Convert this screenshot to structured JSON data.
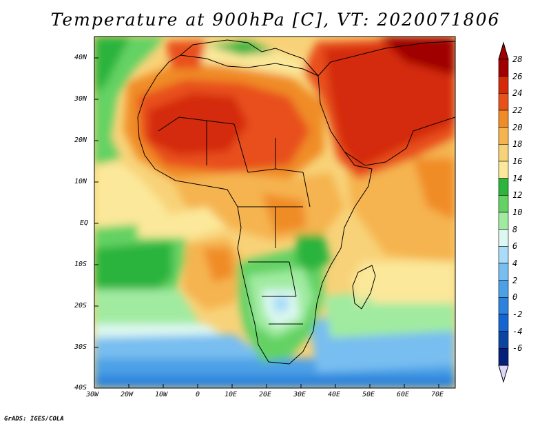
{
  "title": "Temperature at 900hPa [C], VT: 2020071806",
  "credit": "GrADS: IGES/COLA",
  "map": {
    "lat_labels": [
      "40N",
      "30N",
      "20N",
      "10N",
      "EQ",
      "10S",
      "20S",
      "30S",
      "40S"
    ],
    "lon_labels": [
      "30W",
      "20W",
      "10W",
      "0",
      "10E",
      "20E",
      "30E",
      "40E",
      "50E",
      "60E",
      "70E"
    ],
    "extent": {
      "lon_min": -30,
      "lon_max": 75,
      "lat_min": -40,
      "lat_max": 45
    }
  },
  "colorbar": {
    "labels": [
      "28",
      "26",
      "24",
      "22",
      "20",
      "18",
      "16",
      "14",
      "12",
      "10",
      "8",
      "6",
      "4",
      "2",
      "0",
      "-2",
      "-4",
      "-6"
    ],
    "colors": [
      "#a00000",
      "#d42a0a",
      "#e8501a",
      "#f08c28",
      "#f5b450",
      "#f8d278",
      "#fbe89a",
      "#2cb43c",
      "#64d264",
      "#a0eba0",
      "#dcf8f0",
      "#a8dcf8",
      "#78bef0",
      "#4ca0e6",
      "#2c82dc",
      "#1464d2",
      "#0a46a0",
      "#06207a"
    ]
  }
}
